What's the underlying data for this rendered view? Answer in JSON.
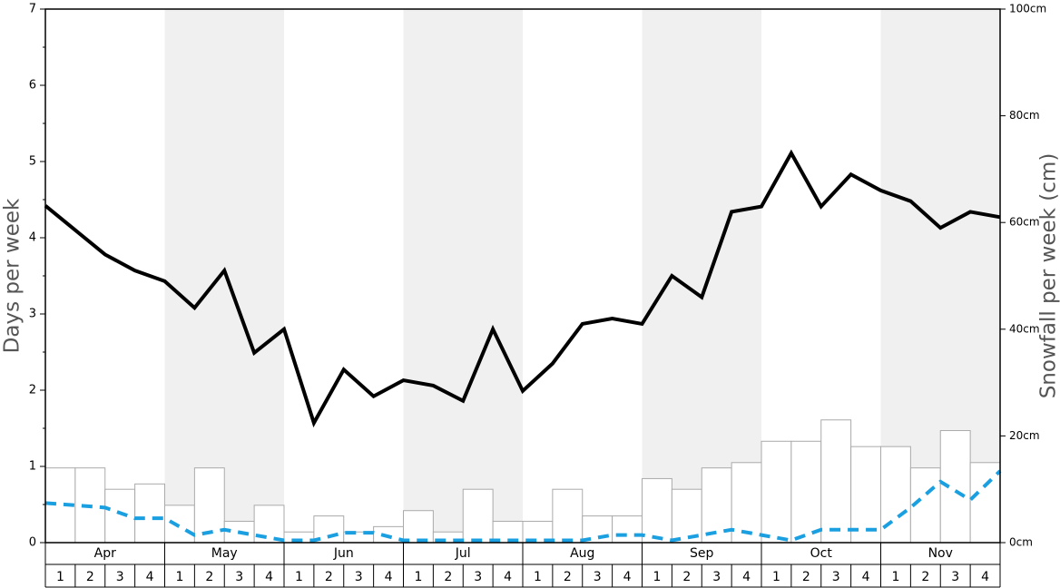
{
  "chart_data": {
    "type": "combo",
    "ylabel": "Days per week",
    "y2label": "Snowfall per week (cm)",
    "months": [
      "Apr",
      "May",
      "Jun",
      "Jul",
      "Aug",
      "Sep",
      "Oct",
      "Nov"
    ],
    "shaded_months": [
      false,
      true,
      false,
      true,
      false,
      true,
      false,
      true
    ],
    "week_labels": [
      "1",
      "2",
      "3",
      "4"
    ],
    "ylim": [
      0,
      7
    ],
    "yticks": [
      0,
      1,
      2,
      3,
      4,
      5,
      6,
      7
    ],
    "yminorticks": [
      0.5,
      1.5,
      2.5,
      3.5,
      4.5,
      5.5,
      6.5
    ],
    "y2lim": [
      0,
      100
    ],
    "y2ticks": [
      {
        "value": 0,
        "label": "0cm"
      },
      {
        "value": 20,
        "label": "20cm"
      },
      {
        "value": 40,
        "label": "40cm"
      },
      {
        "value": 60,
        "label": "60cm"
      },
      {
        "value": 80,
        "label": "80cm"
      },
      {
        "value": 100,
        "label": "100cm"
      }
    ],
    "series": [
      {
        "type": "bar",
        "axis": "y2",
        "color": "#ffffff",
        "values": [
          14,
          14,
          10,
          11,
          7,
          14,
          4,
          7,
          2,
          5,
          2,
          3,
          6,
          2,
          10,
          4,
          4,
          10,
          5,
          5,
          12,
          10,
          14,
          15,
          19,
          19,
          23,
          18,
          18,
          14,
          21,
          15
        ]
      },
      {
        "type": "line",
        "color": "#000000",
        "dashed": false,
        "values": [
          4.42,
          4.1,
          3.78,
          3.57,
          3.43,
          3.08,
          3.57,
          2.49,
          2.8,
          1.57,
          2.27,
          1.92,
          2.13,
          2.06,
          1.86,
          2.8,
          1.99,
          2.35,
          2.87,
          2.94,
          2.87,
          3.5,
          3.22,
          4.34,
          4.41,
          5.11,
          4.41,
          4.83,
          4.62,
          4.48,
          4.13,
          4.34,
          4.27
        ]
      },
      {
        "type": "line",
        "color": "#1a9fe0",
        "dashed": true,
        "values": [
          0.52,
          0.49,
          0.46,
          0.32,
          0.32,
          0.1,
          0.17,
          0.1,
          0.03,
          0.03,
          0.13,
          0.13,
          0.03,
          0.03,
          0.03,
          0.03,
          0.03,
          0.03,
          0.03,
          0.1,
          0.1,
          0.03,
          0.1,
          0.17,
          0.1,
          0.03,
          0.17,
          0.17,
          0.17,
          0.46,
          0.8,
          0.56,
          0.94
        ]
      }
    ]
  }
}
